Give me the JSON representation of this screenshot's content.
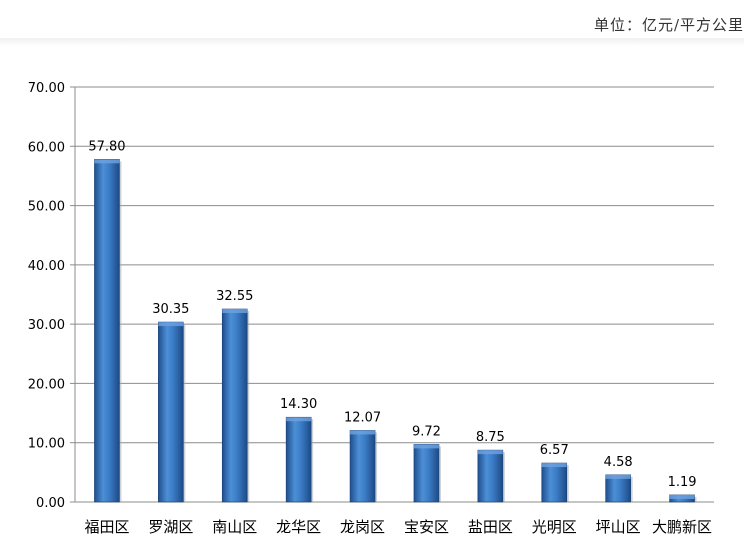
{
  "unit_label": "单位：亿元/平方公里",
  "chart_data": {
    "type": "bar",
    "categories": [
      "福田区",
      "罗湖区",
      "南山区",
      "龙华区",
      "龙岗区",
      "宝安区",
      "盐田区",
      "光明区",
      "坪山区",
      "大鹏新区"
    ],
    "values": [
      57.8,
      30.35,
      32.55,
      14.3,
      12.07,
      9.72,
      8.75,
      6.57,
      4.58,
      1.19
    ],
    "data_labels": [
      "57.80",
      "30.35",
      "32.55",
      "14.30",
      "12.07",
      "9.72",
      "8.75",
      "6.57",
      "4.58",
      "1.19"
    ],
    "y_ticks": [
      "0.00",
      "10.00",
      "20.00",
      "30.00",
      "40.00",
      "50.00",
      "60.00",
      "70.00"
    ],
    "ylim": [
      0,
      70
    ],
    "grid": true,
    "legend": "none",
    "bar_color": "#2f6db5"
  }
}
